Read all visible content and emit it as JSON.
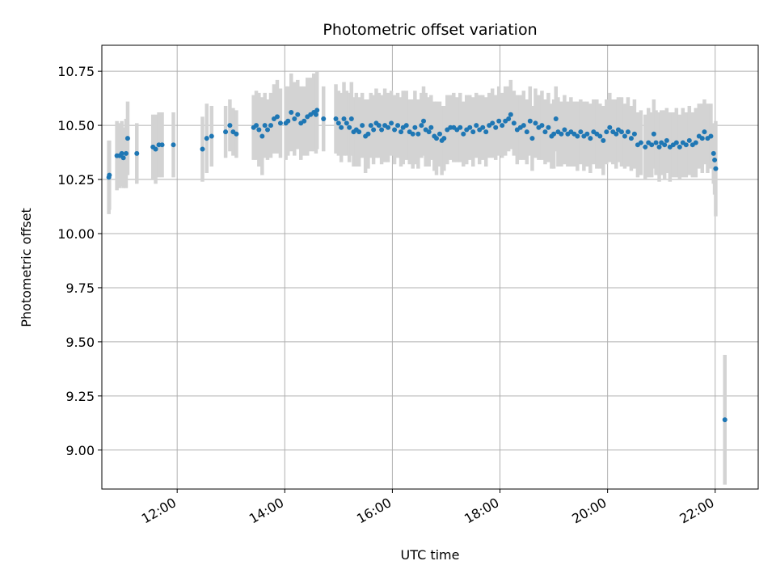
{
  "chart_data": {
    "type": "scatter",
    "title": "Photometric offset variation",
    "xlabel": "UTC time",
    "ylabel": "Photometric offset",
    "x_unit": "hours UTC",
    "xlim": [
      10.6,
      22.8
    ],
    "ylim": [
      8.82,
      10.87
    ],
    "x_ticks": [
      {
        "value": 12,
        "label": "12:00"
      },
      {
        "value": 14,
        "label": "14:00"
      },
      {
        "value": 16,
        "label": "16:00"
      },
      {
        "value": 18,
        "label": "18:00"
      },
      {
        "value": 20,
        "label": "20:00"
      },
      {
        "value": 22,
        "label": "22:00"
      }
    ],
    "y_ticks": [
      {
        "value": 9.0,
        "label": "9.00"
      },
      {
        "value": 9.25,
        "label": "9.25"
      },
      {
        "value": 9.5,
        "label": "9.50"
      },
      {
        "value": 9.75,
        "label": "9.75"
      },
      {
        "value": 10.0,
        "label": "10.00"
      },
      {
        "value": 10.25,
        "label": "10.25"
      },
      {
        "value": 10.5,
        "label": "10.50"
      },
      {
        "value": 10.75,
        "label": "10.75"
      }
    ],
    "grid": true,
    "colors": {
      "point": "#1f77b4",
      "errorbar": "#d3d3d3",
      "grid": "#b0b0b0",
      "axes": "#000000"
    },
    "series": [
      {
        "points": [
          [
            10.73,
            10.26,
            0.17
          ],
          [
            10.74,
            10.27,
            0.16
          ],
          [
            10.88,
            10.36,
            0.16
          ],
          [
            10.93,
            10.36,
            0.15
          ],
          [
            10.97,
            10.37,
            0.15
          ],
          [
            11.0,
            10.35,
            0.14
          ],
          [
            11.05,
            10.37,
            0.16
          ],
          [
            11.08,
            10.44,
            0.17
          ],
          [
            11.25,
            10.37,
            0.14
          ],
          [
            11.55,
            10.4,
            0.15
          ],
          [
            11.6,
            10.39,
            0.16
          ],
          [
            11.66,
            10.41,
            0.15
          ],
          [
            11.72,
            10.41,
            0.15
          ],
          [
            11.93,
            10.41,
            0.15
          ],
          [
            12.47,
            10.39,
            0.15
          ],
          [
            12.55,
            10.44,
            0.16
          ],
          [
            12.64,
            10.45,
            0.14
          ],
          [
            12.9,
            10.47,
            0.12
          ],
          [
            12.98,
            10.5,
            0.12
          ],
          [
            13.04,
            10.47,
            0.11
          ],
          [
            13.1,
            10.46,
            0.11
          ],
          [
            13.42,
            10.49,
            0.15
          ],
          [
            13.47,
            10.5,
            0.16
          ],
          [
            13.52,
            10.48,
            0.17
          ],
          [
            13.58,
            10.45,
            0.18
          ],
          [
            13.63,
            10.5,
            0.15
          ],
          [
            13.68,
            10.48,
            0.14
          ],
          [
            13.74,
            10.5,
            0.15
          ],
          [
            13.8,
            10.53,
            0.16
          ],
          [
            13.86,
            10.54,
            0.17
          ],
          [
            13.92,
            10.51,
            0.16
          ],
          [
            14.02,
            10.51,
            0.17
          ],
          [
            14.06,
            10.52,
            0.16
          ],
          [
            14.12,
            10.56,
            0.18
          ],
          [
            14.18,
            10.53,
            0.17
          ],
          [
            14.24,
            10.55,
            0.16
          ],
          [
            14.3,
            10.51,
            0.17
          ],
          [
            14.36,
            10.52,
            0.16
          ],
          [
            14.42,
            10.54,
            0.18
          ],
          [
            14.48,
            10.55,
            0.17
          ],
          [
            14.54,
            10.56,
            0.18
          ],
          [
            14.58,
            10.55,
            0.18
          ],
          [
            14.6,
            10.57,
            0.18
          ],
          [
            14.72,
            10.53,
            0.15
          ],
          [
            14.95,
            10.53,
            0.16
          ],
          [
            15.0,
            10.51,
            0.15
          ],
          [
            15.05,
            10.49,
            0.16
          ],
          [
            15.1,
            10.53,
            0.17
          ],
          [
            15.15,
            10.51,
            0.15
          ],
          [
            15.2,
            10.49,
            0.16
          ],
          [
            15.24,
            10.53,
            0.17
          ],
          [
            15.28,
            10.47,
            0.16
          ],
          [
            15.33,
            10.48,
            0.17
          ],
          [
            15.38,
            10.47,
            0.16
          ],
          [
            15.44,
            10.5,
            0.15
          ],
          [
            15.5,
            10.45,
            0.17
          ],
          [
            15.55,
            10.46,
            0.16
          ],
          [
            15.6,
            10.5,
            0.15
          ],
          [
            15.65,
            10.48,
            0.16
          ],
          [
            15.7,
            10.51,
            0.16
          ],
          [
            15.75,
            10.5,
            0.15
          ],
          [
            15.8,
            10.48,
            0.16
          ],
          [
            15.86,
            10.5,
            0.17
          ],
          [
            15.92,
            10.49,
            0.16
          ],
          [
            15.98,
            10.51,
            0.15
          ],
          [
            16.04,
            10.48,
            0.16
          ],
          [
            16.1,
            10.5,
            0.15
          ],
          [
            16.16,
            10.47,
            0.16
          ],
          [
            16.2,
            10.49,
            0.17
          ],
          [
            16.26,
            10.5,
            0.16
          ],
          [
            16.32,
            10.47,
            0.15
          ],
          [
            16.38,
            10.46,
            0.16
          ],
          [
            16.42,
            10.49,
            0.17
          ],
          [
            16.48,
            10.46,
            0.16
          ],
          [
            16.54,
            10.5,
            0.15
          ],
          [
            16.58,
            10.52,
            0.16
          ],
          [
            16.62,
            10.48,
            0.17
          ],
          [
            16.68,
            10.47,
            0.16
          ],
          [
            16.72,
            10.49,
            0.15
          ],
          [
            16.78,
            10.45,
            0.16
          ],
          [
            16.82,
            10.44,
            0.17
          ],
          [
            16.88,
            10.46,
            0.15
          ],
          [
            16.92,
            10.43,
            0.16
          ],
          [
            16.96,
            10.44,
            0.15
          ],
          [
            17.02,
            10.48,
            0.16
          ],
          [
            17.08,
            10.49,
            0.15
          ],
          [
            17.14,
            10.49,
            0.16
          ],
          [
            17.2,
            10.48,
            0.15
          ],
          [
            17.26,
            10.49,
            0.16
          ],
          [
            17.32,
            10.46,
            0.15
          ],
          [
            17.38,
            10.48,
            0.16
          ],
          [
            17.44,
            10.49,
            0.15
          ],
          [
            17.5,
            10.47,
            0.16
          ],
          [
            17.56,
            10.5,
            0.15
          ],
          [
            17.62,
            10.48,
            0.16
          ],
          [
            17.68,
            10.49,
            0.15
          ],
          [
            17.74,
            10.47,
            0.16
          ],
          [
            17.8,
            10.5,
            0.15
          ],
          [
            17.86,
            10.51,
            0.16
          ],
          [
            17.92,
            10.49,
            0.15
          ],
          [
            17.98,
            10.52,
            0.16
          ],
          [
            18.04,
            10.5,
            0.15
          ],
          [
            18.1,
            10.52,
            0.16
          ],
          [
            18.16,
            10.53,
            0.15
          ],
          [
            18.2,
            10.55,
            0.16
          ],
          [
            18.26,
            10.51,
            0.15
          ],
          [
            18.32,
            10.48,
            0.16
          ],
          [
            18.38,
            10.49,
            0.15
          ],
          [
            18.44,
            10.5,
            0.16
          ],
          [
            18.5,
            10.47,
            0.15
          ],
          [
            18.56,
            10.52,
            0.16
          ],
          [
            18.6,
            10.44,
            0.15
          ],
          [
            18.66,
            10.51,
            0.16
          ],
          [
            18.72,
            10.49,
            0.15
          ],
          [
            18.78,
            10.5,
            0.16
          ],
          [
            18.84,
            10.47,
            0.15
          ],
          [
            18.9,
            10.49,
            0.16
          ],
          [
            18.96,
            10.45,
            0.15
          ],
          [
            19.0,
            10.46,
            0.16
          ],
          [
            19.04,
            10.53,
            0.15
          ],
          [
            19.08,
            10.47,
            0.16
          ],
          [
            19.14,
            10.46,
            0.15
          ],
          [
            19.2,
            10.48,
            0.16
          ],
          [
            19.26,
            10.46,
            0.15
          ],
          [
            19.32,
            10.47,
            0.16
          ],
          [
            19.38,
            10.46,
            0.15
          ],
          [
            19.44,
            10.45,
            0.16
          ],
          [
            19.5,
            10.47,
            0.15
          ],
          [
            19.56,
            10.45,
            0.16
          ],
          [
            19.62,
            10.46,
            0.15
          ],
          [
            19.68,
            10.44,
            0.16
          ],
          [
            19.74,
            10.47,
            0.15
          ],
          [
            19.8,
            10.46,
            0.16
          ],
          [
            19.86,
            10.45,
            0.15
          ],
          [
            19.92,
            10.43,
            0.16
          ],
          [
            19.98,
            10.47,
            0.15
          ],
          [
            20.04,
            10.49,
            0.16
          ],
          [
            20.1,
            10.47,
            0.15
          ],
          [
            20.16,
            10.46,
            0.16
          ],
          [
            20.2,
            10.48,
            0.15
          ],
          [
            20.26,
            10.47,
            0.16
          ],
          [
            20.32,
            10.45,
            0.15
          ],
          [
            20.38,
            10.47,
            0.16
          ],
          [
            20.44,
            10.44,
            0.15
          ],
          [
            20.5,
            10.46,
            0.16
          ],
          [
            20.56,
            10.41,
            0.15
          ],
          [
            20.62,
            10.42,
            0.15
          ],
          [
            20.7,
            10.4,
            0.15
          ],
          [
            20.76,
            10.42,
            0.16
          ],
          [
            20.82,
            10.41,
            0.15
          ],
          [
            20.86,
            10.46,
            0.16
          ],
          [
            20.9,
            10.42,
            0.15
          ],
          [
            20.96,
            10.4,
            0.16
          ],
          [
            21.0,
            10.42,
            0.15
          ],
          [
            21.06,
            10.41,
            0.16
          ],
          [
            21.1,
            10.43,
            0.15
          ],
          [
            21.16,
            10.4,
            0.16
          ],
          [
            21.22,
            10.41,
            0.15
          ],
          [
            21.28,
            10.42,
            0.16
          ],
          [
            21.34,
            10.4,
            0.15
          ],
          [
            21.4,
            10.42,
            0.16
          ],
          [
            21.46,
            10.41,
            0.15
          ],
          [
            21.52,
            10.43,
            0.16
          ],
          [
            21.58,
            10.41,
            0.15
          ],
          [
            21.64,
            10.42,
            0.16
          ],
          [
            21.7,
            10.45,
            0.15
          ],
          [
            21.76,
            10.44,
            0.16
          ],
          [
            21.8,
            10.47,
            0.15
          ],
          [
            21.86,
            10.44,
            0.16
          ],
          [
            21.92,
            10.45,
            0.15
          ],
          [
            21.97,
            10.37,
            0.14
          ],
          [
            21.99,
            10.34,
            0.16
          ],
          [
            22.01,
            10.3,
            0.22
          ],
          [
            22.18,
            9.14,
            0.3
          ]
        ]
      }
    ]
  }
}
